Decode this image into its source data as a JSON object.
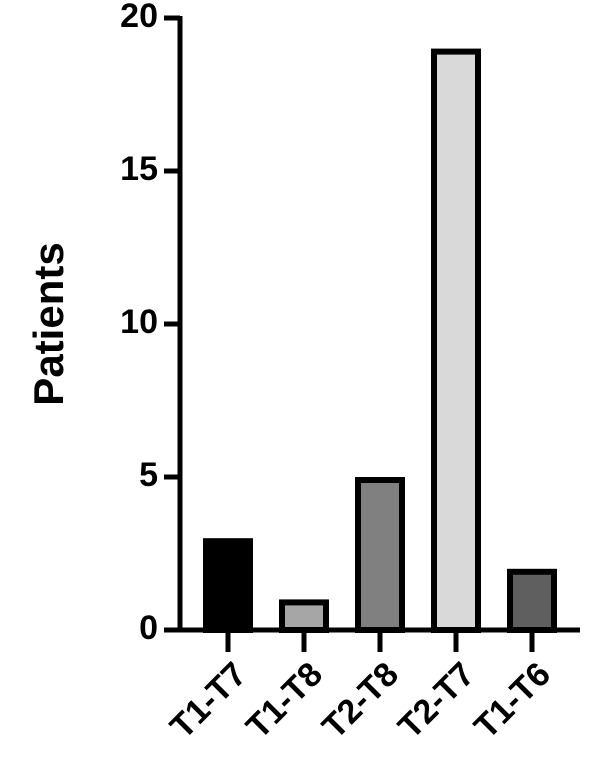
{
  "chart_data": {
    "type": "bar",
    "y_label": "Patients",
    "categories": [
      "T1-T7",
      "T1-T8",
      "T2-T8",
      "T2-T7",
      "T1-T6"
    ],
    "values": [
      3,
      1,
      5,
      19,
      2
    ],
    "colors": [
      "#000000",
      "#a6a6a6",
      "#808080",
      "#d9d9d9",
      "#5f5f5f"
    ],
    "ylim": [
      0,
      20
    ],
    "yticks": [
      0,
      5,
      10,
      15,
      20
    ]
  }
}
